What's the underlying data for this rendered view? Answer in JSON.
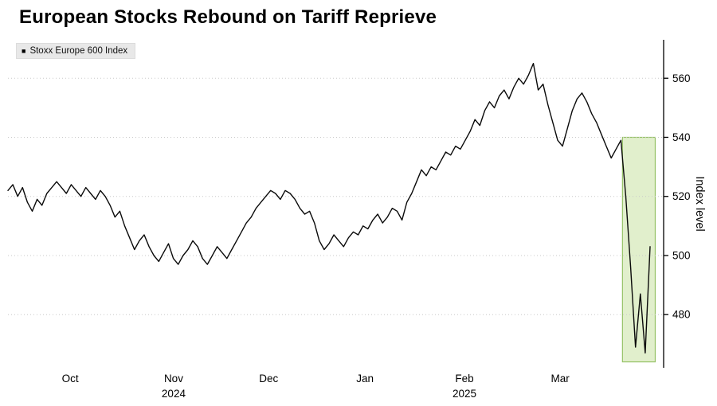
{
  "title": "European Stocks Rebound on Tariff Reprieve",
  "legend": {
    "marker": "■",
    "label": "Stoxx Europe 600 Index"
  },
  "colors": {
    "line": "#0a0a0a",
    "grid": "#c9c9c9",
    "axis": "#000000",
    "highlight_fill": "#e1efcc",
    "highlight_stroke": "#96c266",
    "legend_bg": "#e8e8e8"
  },
  "chart_data": {
    "type": "line",
    "title": "European Stocks Rebound on Tariff Reprieve",
    "ylabel": "Index level",
    "ylim": [
      462,
      573
    ],
    "y_ticks": [
      480,
      500,
      520,
      540,
      560
    ],
    "x_ticks": [
      {
        "label": "Oct",
        "pos": 0.097,
        "year": ""
      },
      {
        "label": "Nov",
        "pos": 0.258,
        "year": "2024"
      },
      {
        "label": "Dec",
        "pos": 0.406,
        "year": ""
      },
      {
        "label": "Jan",
        "pos": 0.556,
        "year": ""
      },
      {
        "label": "Feb",
        "pos": 0.711,
        "year": "2025"
      },
      {
        "label": "Mar",
        "pos": 0.86,
        "year": ""
      }
    ],
    "grid": "dotted-horizontal",
    "legend_position": "top-left",
    "highlight": {
      "x": [
        0.957,
        1.008
      ],
      "y": [
        464,
        540
      ]
    },
    "series": [
      {
        "name": "Stoxx Europe 600 Index",
        "values": [
          522,
          524,
          520,
          523,
          518,
          515,
          519,
          517,
          521,
          523,
          525,
          523,
          521,
          524,
          522,
          520,
          523,
          521,
          519,
          522,
          520,
          517,
          513,
          515,
          510,
          506,
          502,
          505,
          507,
          503,
          500,
          498,
          501,
          504,
          499,
          497,
          500,
          502,
          505,
          503,
          499,
          497,
          500,
          503,
          501,
          499,
          502,
          505,
          508,
          511,
          513,
          516,
          518,
          520,
          522,
          521,
          519,
          522,
          521,
          519,
          516,
          514,
          515,
          511,
          505,
          502,
          504,
          507,
          505,
          503,
          506,
          508,
          507,
          510,
          509,
          512,
          514,
          511,
          513,
          516,
          515,
          512,
          518,
          521,
          525,
          529,
          527,
          530,
          529,
          532,
          535,
          534,
          537,
          536,
          539,
          542,
          546,
          544,
          549,
          552,
          550,
          554,
          556,
          553,
          557,
          560,
          558,
          561,
          565,
          556,
          558,
          551,
          545,
          539,
          537,
          543,
          549,
          553,
          555,
          552,
          548,
          545,
          541,
          537,
          533,
          536,
          539,
          520,
          496,
          469,
          487,
          467,
          503
        ]
      }
    ]
  }
}
